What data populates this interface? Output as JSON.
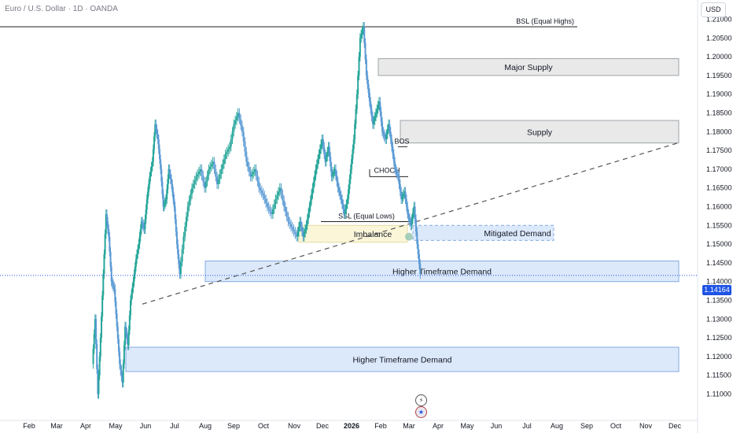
{
  "header": {
    "symbol_title": "Euro / U.S. Dollar · 1D · OANDA",
    "currency_button": "USD",
    "current_price_label": "1.14164"
  },
  "events": {
    "bolt_icon": "lightning-event-icon",
    "flag_icon": "us-flag-event-icon"
  },
  "chart_data": {
    "type": "candlestick",
    "ylim": [
      1.108,
      1.212
    ],
    "y_ticks": [
      "1.21000",
      "1.20500",
      "1.20000",
      "1.19500",
      "1.19000",
      "1.18500",
      "1.18000",
      "1.17500",
      "1.17000",
      "1.16500",
      "1.16000",
      "1.15500",
      "1.15000",
      "1.14500",
      "1.14000",
      "1.13500",
      "1.13000",
      "1.12500",
      "1.12000",
      "1.11500",
      "1.11000"
    ],
    "x_tick_labels": [
      "Feb",
      "Mar",
      "Apr",
      "May",
      "Jun",
      "Jul",
      "Aug",
      "Sep",
      "Oct",
      "Nov",
      "Dec",
      "2026",
      "Feb",
      "Mar",
      "Apr",
      "May",
      "Jun",
      "Jul",
      "Aug",
      "Sep",
      "Oct",
      "Nov",
      "Dec"
    ],
    "current_price": 1.14164,
    "colors": {
      "up": "#26a69a",
      "down": "#5b9bd5",
      "zone_fill": "#dbe8fb",
      "zone_border": "#7fa7e0",
      "supply_fill": "#e8e8e8",
      "imbalance_fill": "#fbf6d6",
      "price_tag": "#1e53e5"
    },
    "price_path": [
      [
        1.118,
        1.13,
        1.11,
        1.125,
        1.142,
        1.158,
        1.152,
        1.14,
        1.138,
        1.128,
        1.118,
        1.113,
        1.128,
        1.123,
        1.135,
        1.14,
        1.146,
        1.15,
        1.156,
        1.154,
        1.162,
        1.168,
        1.172,
        1.182,
        1.178,
        1.17,
        1.16,
        1.162,
        1.17,
        1.166,
        1.16,
        1.15,
        1.142
      ],
      [
        1.142,
        1.152,
        1.16,
        1.165,
        1.168,
        1.17,
        1.165,
        1.17,
        1.172,
        1.166,
        1.17,
        1.174,
        1.176,
        1.182,
        1.185,
        1.18,
        1.172,
        1.168,
        1.17,
        1.165,
        1.163,
        1.16,
        1.158,
        1.162,
        1.165,
        1.16,
        1.156,
        1.154,
        1.152
      ],
      [
        1.152,
        1.156,
        1.152,
        1.155,
        1.16,
        1.165,
        1.17,
        1.174,
        1.178,
        1.172,
        1.176,
        1.168,
        1.17,
        1.165,
        1.162,
        1.158,
        1.162,
        1.17,
        1.178,
        1.19,
        1.205,
        1.208,
        1.195,
        1.188,
        1.182,
        1.185,
        1.188,
        1.18,
        1.178,
        1.182,
        1.176,
        1.17,
        1.168,
        1.162,
        1.164,
        1.158,
        1.155,
        1.16,
        1.15,
        1.142
      ]
    ],
    "lines": [
      {
        "label": "BSL (Equal Highs)",
        "price": 1.208
      },
      {
        "label": "SSL (Equal Lows)",
        "price": 1.156
      },
      {
        "label": "CHOCH",
        "price": 1.168
      },
      {
        "label": "BOS",
        "price": 1.176
      }
    ],
    "trendline": {
      "from": 1.134,
      "to": 1.177
    },
    "zones": [
      {
        "label": "Major Supply",
        "top": 1.1995,
        "bottom": 1.195
      },
      {
        "label": "Supply",
        "top": 1.183,
        "bottom": 1.177
      },
      {
        "label": "Mitigated Demand",
        "top": 1.155,
        "bottom": 1.151
      },
      {
        "label": "Imbalance",
        "top": 1.155,
        "bottom": 1.1505
      },
      {
        "label": "Higher Timeframe Demand",
        "top": 1.1455,
        "bottom": 1.14
      },
      {
        "label": "Higher Timeframe Demand",
        "top": 1.1225,
        "bottom": 1.116
      }
    ]
  }
}
